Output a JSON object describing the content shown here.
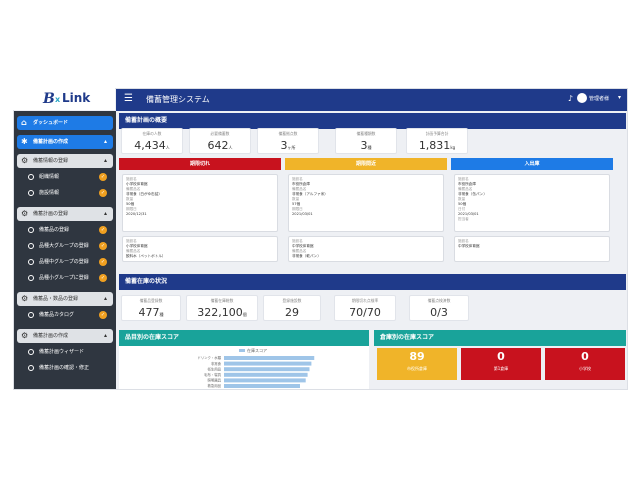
{
  "logo": {
    "b": "B",
    "x": "x",
    "link": "Link"
  },
  "header": {
    "title": "備蓄管理システム",
    "user": "管理者様"
  },
  "sidebar": {
    "items": [
      {
        "label": "ダッシュボード"
      },
      {
        "label": "備蓄計画の作成"
      },
      {
        "label": "備蓄情報の登録"
      },
      {
        "label": "組織情報"
      },
      {
        "label": "施設情報"
      },
      {
        "label": "備蓄計画の登録"
      },
      {
        "label": "備蓄品の登録"
      },
      {
        "label": "品種大グループの登録"
      },
      {
        "label": "品種中グループの登録"
      },
      {
        "label": "品種小グループに登録"
      },
      {
        "label": "備蓄品・数品の登録"
      },
      {
        "label": "備蓄品カタログ"
      },
      {
        "label": "備蓄計画の作成"
      },
      {
        "label": "備蓄計画ウィザード"
      },
      {
        "label": "備蓄計画の確認・修正"
      }
    ]
  },
  "plan": {
    "title": "備蓄計画の概要",
    "kpis": [
      {
        "label": "在庫の人数",
        "value": "4,434",
        "unit": "人"
      },
      {
        "label": "必要備蓄数",
        "value": "642",
        "unit": "人"
      },
      {
        "label": "備蓄拠点数",
        "value": "3",
        "unit": "ヶ所"
      },
      {
        "label": "備蓄種類数",
        "value": "3",
        "unit": "種"
      },
      {
        "label": "計画予算合計",
        "value": "1,831",
        "unit": "kg"
      }
    ],
    "columns": [
      {
        "title": "期限切れ",
        "color": "#c8121e",
        "cards": [
          {
            "rows": [
              [
                "施設名",
                "小学校体育館"
              ],
              [
                "備蓄品名",
                "非常食（白がゆ缶詰）"
              ],
              [
                "数量",
                "50個"
              ],
              [
                "期限日",
                "2020/12/31"
              ]
            ]
          },
          {
            "rows": [
              [
                "施設名",
                "小学校体育館"
              ],
              [
                "備蓄品名",
                "飲料水（ペットボトル）"
              ]
            ]
          }
        ]
      },
      {
        "title": "期限間近",
        "color": "#f0b429",
        "cards": [
          {
            "rows": [
              [
                "施設名",
                "市役所倉庫"
              ],
              [
                "備蓄品名",
                "非常食（アルファ米）"
              ],
              [
                "数量",
                "57個"
              ],
              [
                "期限日",
                "2021/03/01"
              ]
            ]
          },
          {
            "rows": [
              [
                "施設名",
                "中学校体育館"
              ],
              [
                "備蓄品名",
                "非常食（乾パン）"
              ]
            ]
          }
        ]
      },
      {
        "title": "入出庫",
        "color": "#1e7be6",
        "cards": [
          {
            "rows": [
              [
                "施設名",
                "市役所倉庫"
              ],
              [
                "備蓄品名",
                "非常食（缶パン）"
              ],
              [
                "数量",
                "50個"
              ],
              [
                "日付",
                "2021/03/01"
              ],
              [
                "担当者",
                ""
              ]
            ]
          },
          {
            "rows": [
              [
                "施設名",
                "中学校体育館"
              ]
            ]
          }
        ]
      }
    ]
  },
  "stock": {
    "title": "備蓄在庫の状況",
    "kpis": [
      {
        "label": "備蓄品登録数",
        "value": "477",
        "unit": "種"
      },
      {
        "label": "備蓄在庫総数",
        "value": "322,100",
        "unit": "個"
      },
      {
        "label": "登録施設数",
        "value": "29",
        "unit": ""
      },
      {
        "label": "期限切れ点検率",
        "value": "70/70",
        "unit": ""
      },
      {
        "label": "備蓄点検済数",
        "value": "0/3",
        "unit": ""
      }
    ]
  },
  "category_score": {
    "title": "品目別の在庫スコア",
    "legend": "在庫スコア",
    "rows": [
      {
        "label": "ドリンク・水類",
        "value": 95
      },
      {
        "label": "非常食",
        "value": 92
      },
      {
        "label": "衛生用品",
        "value": 90
      },
      {
        "label": "毛布・寝具",
        "value": 88
      },
      {
        "label": "照明器具",
        "value": 86
      },
      {
        "label": "救急用品",
        "value": 80
      }
    ]
  },
  "warehouse_score": {
    "title": "倉庫別の在庫スコア",
    "cards": [
      {
        "value": "89",
        "label": "市役所倉庫",
        "color": "#f0b429"
      },
      {
        "value": "0",
        "label": "第1倉庫",
        "color": "#c8121e"
      },
      {
        "value": "0",
        "label": "小学校",
        "color": "#c8121e"
      }
    ]
  }
}
